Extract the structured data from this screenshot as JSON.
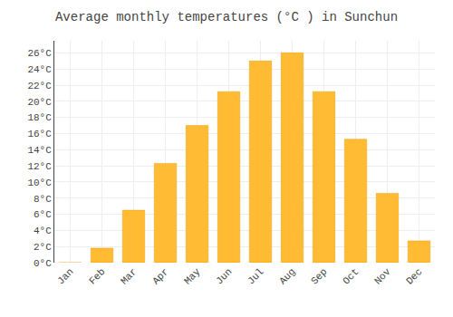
{
  "chart_data": {
    "type": "bar",
    "title": "Average monthly temperatures (°C ) in Sunchun",
    "categories": [
      "Jan",
      "Feb",
      "Mar",
      "Apr",
      "May",
      "Jun",
      "Jul",
      "Aug",
      "Sep",
      "Oct",
      "Nov",
      "Dec"
    ],
    "values": [
      0,
      1.8,
      6.5,
      12.3,
      17.0,
      21.2,
      25.0,
      26.0,
      21.2,
      15.3,
      8.6,
      2.7
    ],
    "color": "#FFBB33",
    "ylim": [
      0,
      27.5
    ],
    "yticks": [
      {
        "value": 0,
        "label": "0°C"
      },
      {
        "value": 2,
        "label": "2°C"
      },
      {
        "value": 4,
        "label": "4°C"
      },
      {
        "value": 6,
        "label": "6°C"
      },
      {
        "value": 8,
        "label": "8°C"
      },
      {
        "value": 10,
        "label": "10°C"
      },
      {
        "value": 12,
        "label": "12°C"
      },
      {
        "value": 14,
        "label": "14°C"
      },
      {
        "value": 16,
        "label": "16°C"
      },
      {
        "value": 18,
        "label": "18°C"
      },
      {
        "value": 20,
        "label": "20°C"
      },
      {
        "value": 22,
        "label": "22°C"
      },
      {
        "value": 24,
        "label": "24°C"
      },
      {
        "value": 26,
        "label": "26°C"
      }
    ],
    "grid": true
  }
}
